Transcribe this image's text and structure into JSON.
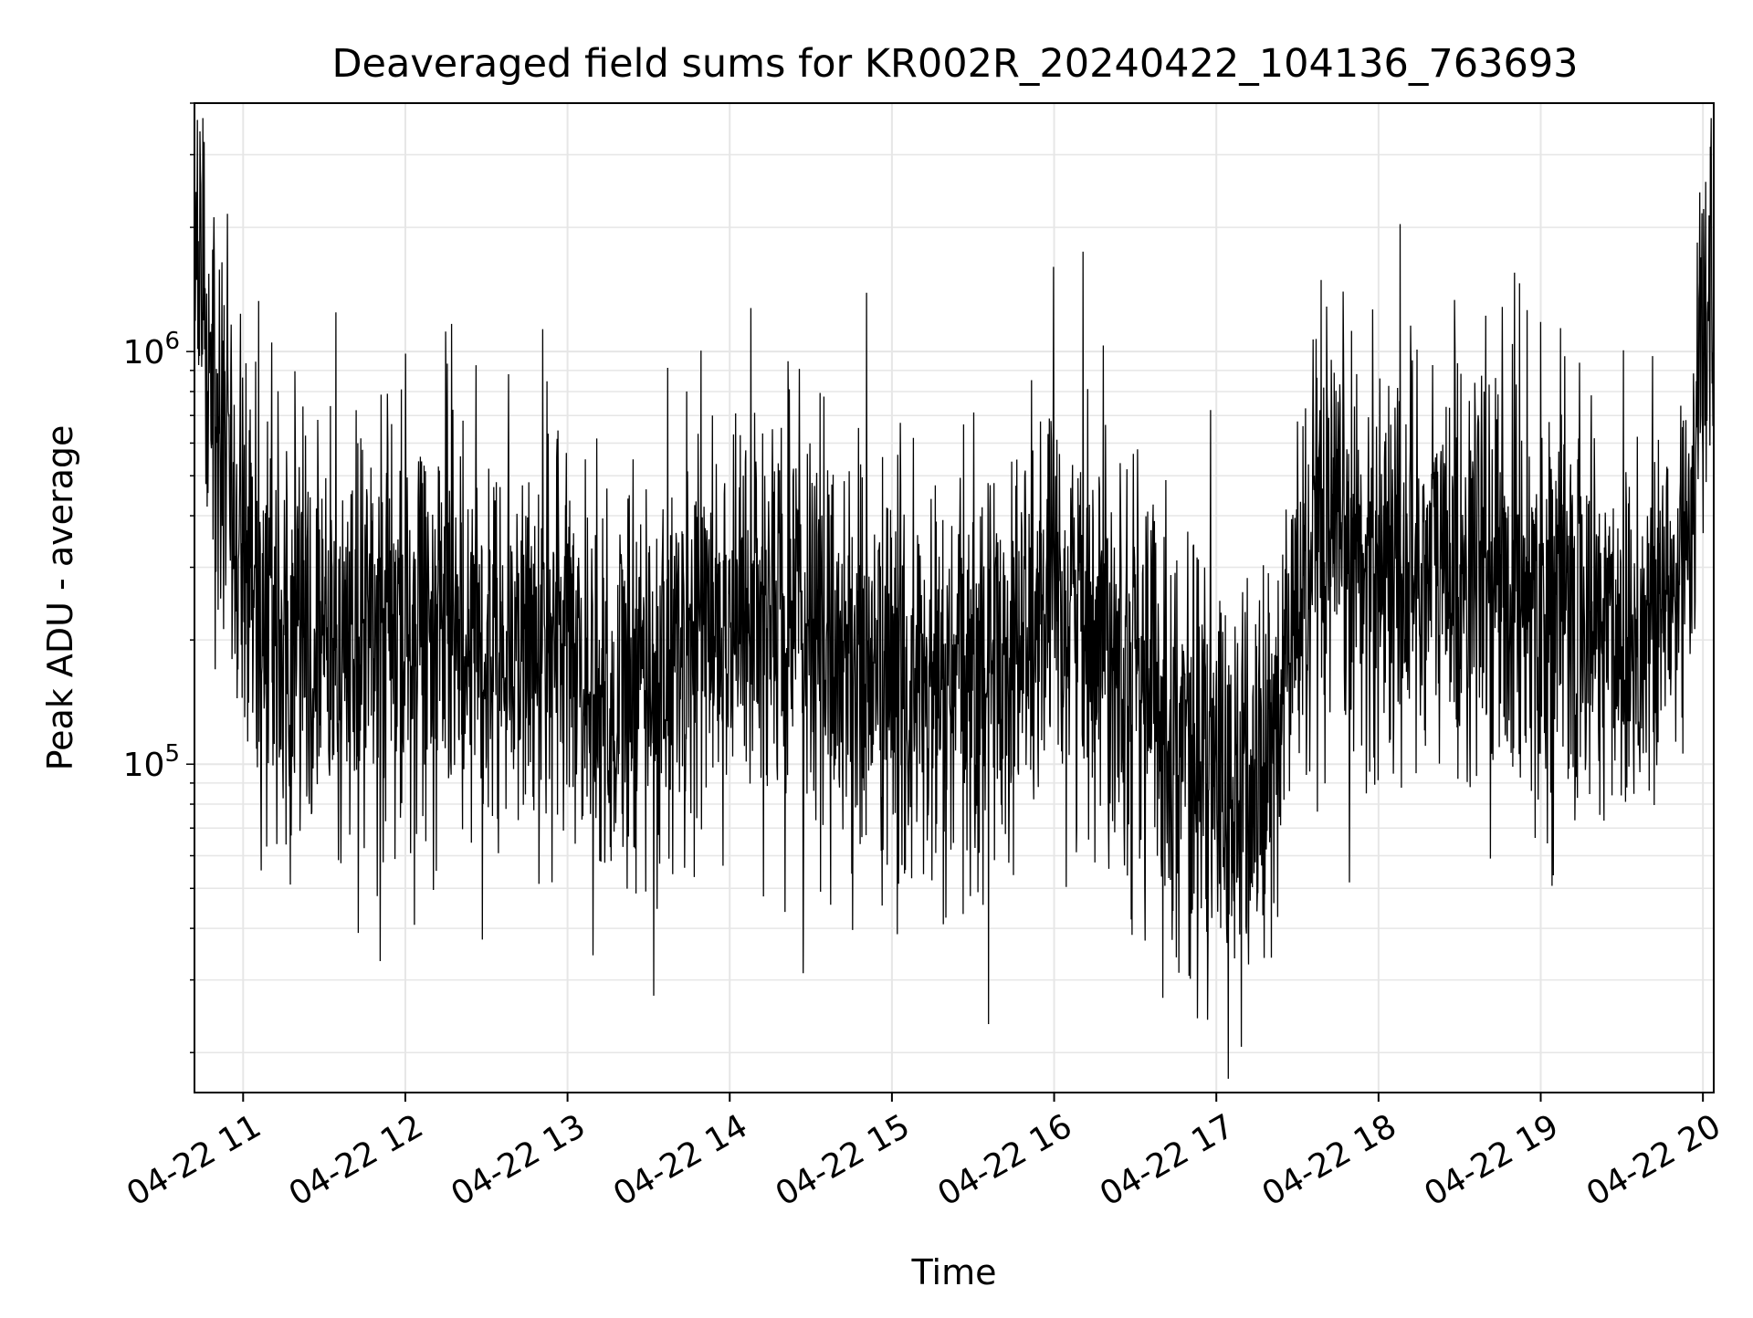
{
  "chart_data": {
    "type": "line",
    "title": "Deaveraged field sums for KR002R_20240422_104136_763693",
    "xlabel": "Time",
    "ylabel": "Peak ADU - average",
    "yscale": "log",
    "ylim": [
      16000,
      4000000
    ],
    "xlim": [
      "04-22 10:42",
      "04-22 20:04"
    ],
    "grid": true,
    "line_color": "#000000",
    "grid_color": "#e6e6e6",
    "x_ticks": [
      {
        "value": "04-22 11:00",
        "label": "04-22 11"
      },
      {
        "value": "04-22 12:00",
        "label": "04-22 12"
      },
      {
        "value": "04-22 13:00",
        "label": "04-22 13"
      },
      {
        "value": "04-22 14:00",
        "label": "04-22 14"
      },
      {
        "value": "04-22 15:00",
        "label": "04-22 15"
      },
      {
        "value": "04-22 16:00",
        "label": "04-22 16"
      },
      {
        "value": "04-22 17:00",
        "label": "04-22 17"
      },
      {
        "value": "04-22 18:00",
        "label": "04-22 18"
      },
      {
        "value": "04-22 19:00",
        "label": "04-22 19"
      },
      {
        "value": "04-22 20:00",
        "label": "04-22 20"
      }
    ],
    "y_ticks": [
      {
        "value": 100000,
        "base": "10",
        "exp": "5"
      },
      {
        "value": 1000000,
        "base": "10",
        "exp": "6"
      }
    ],
    "series": [
      {
        "x": [
          "04-22 10:42",
          "04-22 10:46",
          "04-22 10:50",
          "04-22 10:54",
          "04-22 10:58",
          "04-22 11:05",
          "04-22 11:15",
          "04-22 11:30",
          "04-22 11:45",
          "04-22 12:00",
          "04-22 12:15",
          "04-22 12:30",
          "04-22 12:45",
          "04-22 13:00",
          "04-22 13:10",
          "04-22 13:20",
          "04-22 13:35",
          "04-22 13:50",
          "04-22 14:05",
          "04-22 14:20",
          "04-22 14:35",
          "04-22 14:50",
          "04-22 15:05",
          "04-22 15:20",
          "04-22 15:35",
          "04-22 15:50",
          "04-22 16:05",
          "04-22 16:20",
          "04-22 16:35",
          "04-22 16:50",
          "04-22 17:00",
          "04-22 17:10",
          "04-22 17:20",
          "04-22 17:30",
          "04-22 17:40",
          "04-22 17:55",
          "04-22 18:10",
          "04-22 18:25",
          "04-22 18:40",
          "04-22 18:55",
          "04-22 19:10",
          "04-22 19:25",
          "04-22 19:40",
          "04-22 19:50",
          "04-22 19:55",
          "04-22 20:00",
          "04-22 20:04"
        ],
        "y": [
          1300000,
          1100000,
          900000,
          650000,
          450000,
          260000,
          200000,
          190000,
          200000,
          210000,
          230000,
          210000,
          200000,
          200000,
          150000,
          140000,
          170000,
          220000,
          230000,
          230000,
          200000,
          170000,
          150000,
          140000,
          170000,
          210000,
          240000,
          230000,
          150000,
          110000,
          90000,
          80000,
          100000,
          250000,
          300000,
          320000,
          310000,
          300000,
          290000,
          280000,
          230000,
          220000,
          210000,
          260000,
          420000,
          1000000,
          1400000
        ]
      }
    ]
  }
}
